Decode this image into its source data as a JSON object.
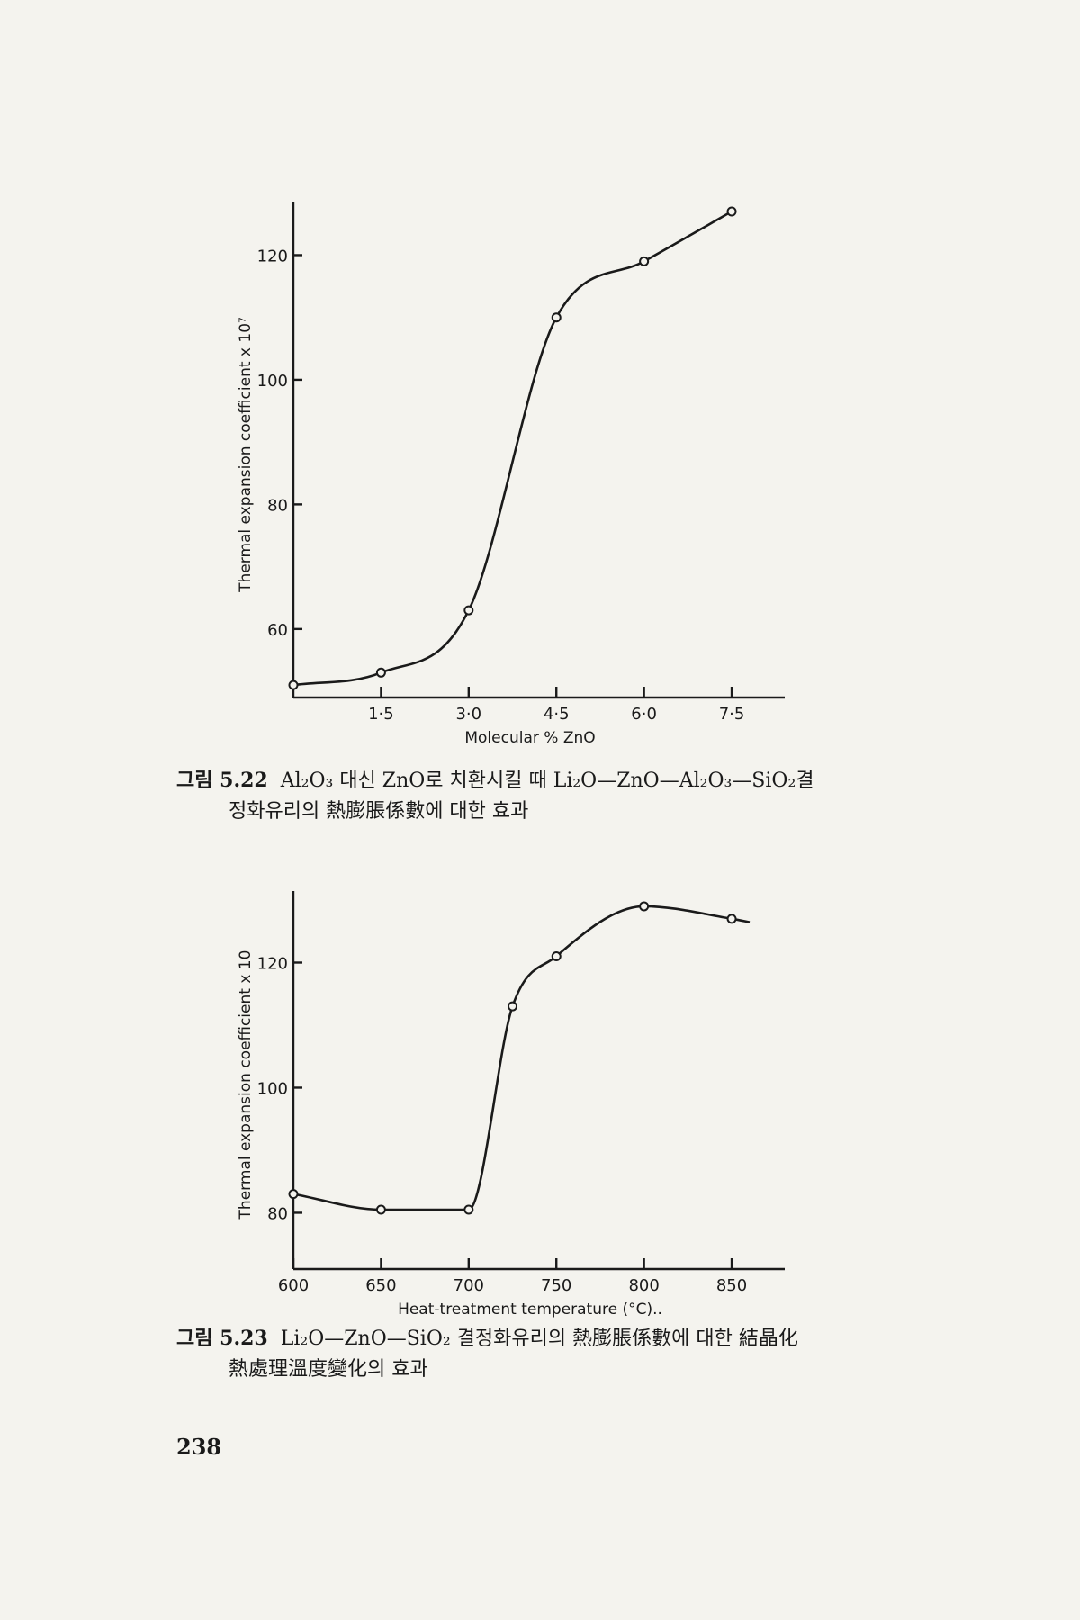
{
  "chart_data": [
    {
      "type": "line",
      "xlabel": "Molecular % ZnO",
      "ylabel": "Thermal expansion coefficient x 10⁷",
      "xlim": [
        0,
        8.1
      ],
      "ylim": [
        49,
        127
      ],
      "x_ticks": [
        1.5,
        3.0,
        4.5,
        6.0,
        7.5
      ],
      "x_tick_labels": [
        "1·5",
        "3·0",
        "4·5",
        "6·0",
        "7·5"
      ],
      "y_ticks": [
        60,
        80,
        100,
        120
      ],
      "y_tick_labels": [
        "60",
        "80",
        "100",
        "120"
      ],
      "series": [
        {
          "x": [
            0,
            1.5,
            3.0,
            4.5,
            6.0,
            7.5
          ],
          "y": [
            51,
            53,
            63,
            110,
            119,
            127
          ]
        }
      ],
      "grid": false
    },
    {
      "type": "line",
      "xlabel": "Heat-treatment temperature (°C)..",
      "ylabel": "Thermal expansion coefficient x 10",
      "xlim": [
        600,
        870
      ],
      "ylim": [
        71,
        130
      ],
      "x_ticks": [
        600,
        650,
        700,
        750,
        800,
        850
      ],
      "x_tick_labels": [
        "600",
        "650",
        "700",
        "750",
        "800",
        "850"
      ],
      "y_ticks": [
        80,
        100,
        120
      ],
      "y_tick_labels": [
        "80",
        "100",
        "120"
      ],
      "series": [
        {
          "x": [
            600,
            650,
            700,
            725,
            750,
            800,
            850
          ],
          "y": [
            83,
            80.5,
            80.5,
            113,
            121,
            129,
            127
          ]
        }
      ],
      "grid": false
    }
  ],
  "captions": [
    {
      "label": "그림 5.22",
      "line1": "Al₂O₃ 대신 ZnO로 치환시킬 때 Li₂O—ZnO—Al₂O₃—SiO₂결",
      "line2": "정화유리의 熱膨脹係數에 대한 효과"
    },
    {
      "label": "그림 5.23",
      "line1": "Li₂O—ZnO—SiO₂ 결정화유리의 熱膨脹係數에 대한 結晶化",
      "line2": "熱處理溫度變化의 효과"
    }
  ],
  "page_number": "238"
}
